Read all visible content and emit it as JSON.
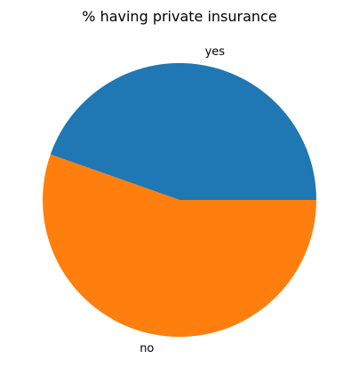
{
  "chart_data": {
    "type": "pie",
    "title": "% having private insurance",
    "labels": [
      "yes",
      "no"
    ],
    "values": [
      44.6,
      55.4
    ],
    "colors": [
      "#1f77b4",
      "#ff7f0e"
    ],
    "start_angle_deg": 0,
    "direction": "counterclockwise",
    "legend": "none"
  }
}
